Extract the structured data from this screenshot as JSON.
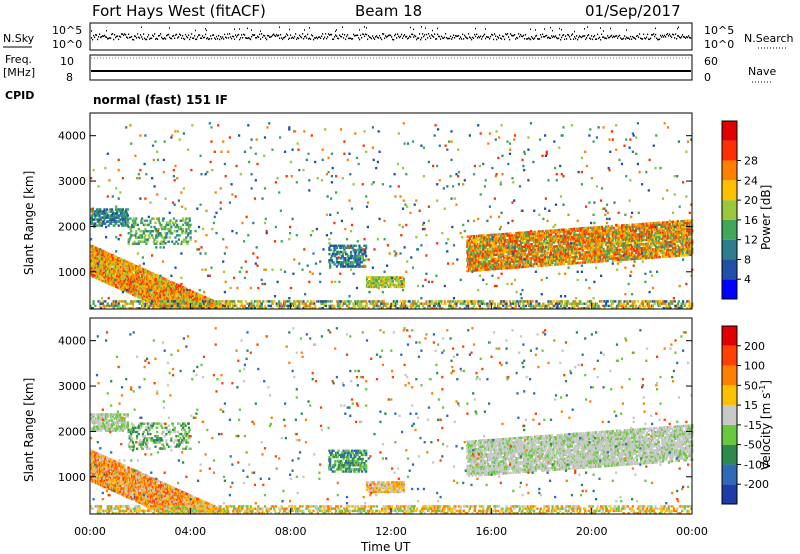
{
  "header": {
    "station": "Fort Hays West (fitACF)",
    "beam": "Beam 18",
    "date": "01/Sep/2017"
  },
  "status_panels": {
    "nsky_label": "N.Sky",
    "nsearch_label": "N.Search",
    "noise_ticks": [
      "10^5",
      "10^0"
    ],
    "freq_label_1": "Freq.",
    "freq_label_2": "[MHz]",
    "freq_ticks": [
      "10",
      "8"
    ],
    "nave_label": "Nave",
    "nave_ticks": [
      "60",
      "0"
    ],
    "cpid_label": "CPID",
    "cpid_text": "normal (fast) 151 IF"
  },
  "chart_data": [
    {
      "type": "heatmap",
      "panel": "power",
      "ylabel": "Slant Range [km]",
      "xlabel": "",
      "ylim": [
        180,
        4500
      ],
      "yticks": [
        1000,
        2000,
        3000,
        4000
      ],
      "xlim": [
        0,
        24
      ],
      "colorbar_label": "Power [dB]",
      "colorbar_ticks": [
        "4",
        "8",
        "12",
        "16",
        "20",
        "24",
        "28"
      ],
      "colors": [
        "#0000ff",
        "#1f4fa8",
        "#2e7d8c",
        "#3fa85a",
        "#9ac83c",
        "#ffc000",
        "#ff8000",
        "#ff3000",
        "#e00000"
      ]
    },
    {
      "type": "heatmap",
      "panel": "velocity",
      "ylabel": "Slant Range [km]",
      "xlabel": "Time UT",
      "ylim": [
        180,
        4500
      ],
      "yticks": [
        1000,
        2000,
        3000,
        4000
      ],
      "xlim": [
        0,
        24
      ],
      "xticks": [
        "00:00",
        "04:00",
        "08:00",
        "12:00",
        "16:00",
        "20:00",
        "00:00"
      ],
      "colorbar_label": "Velocity [m s",
      "colorbar_sup": "-1",
      "colorbar_ticks": [
        "200",
        "100",
        "50",
        "15",
        "-15",
        "-50",
        "-100",
        "-200"
      ],
      "colors": [
        "#1e3ca8",
        "#2e6ab8",
        "#2e8a4a",
        "#6ac83c",
        "#c8c8c8",
        "#ffc000",
        "#ff8000",
        "#ff4000",
        "#e00000"
      ]
    }
  ]
}
